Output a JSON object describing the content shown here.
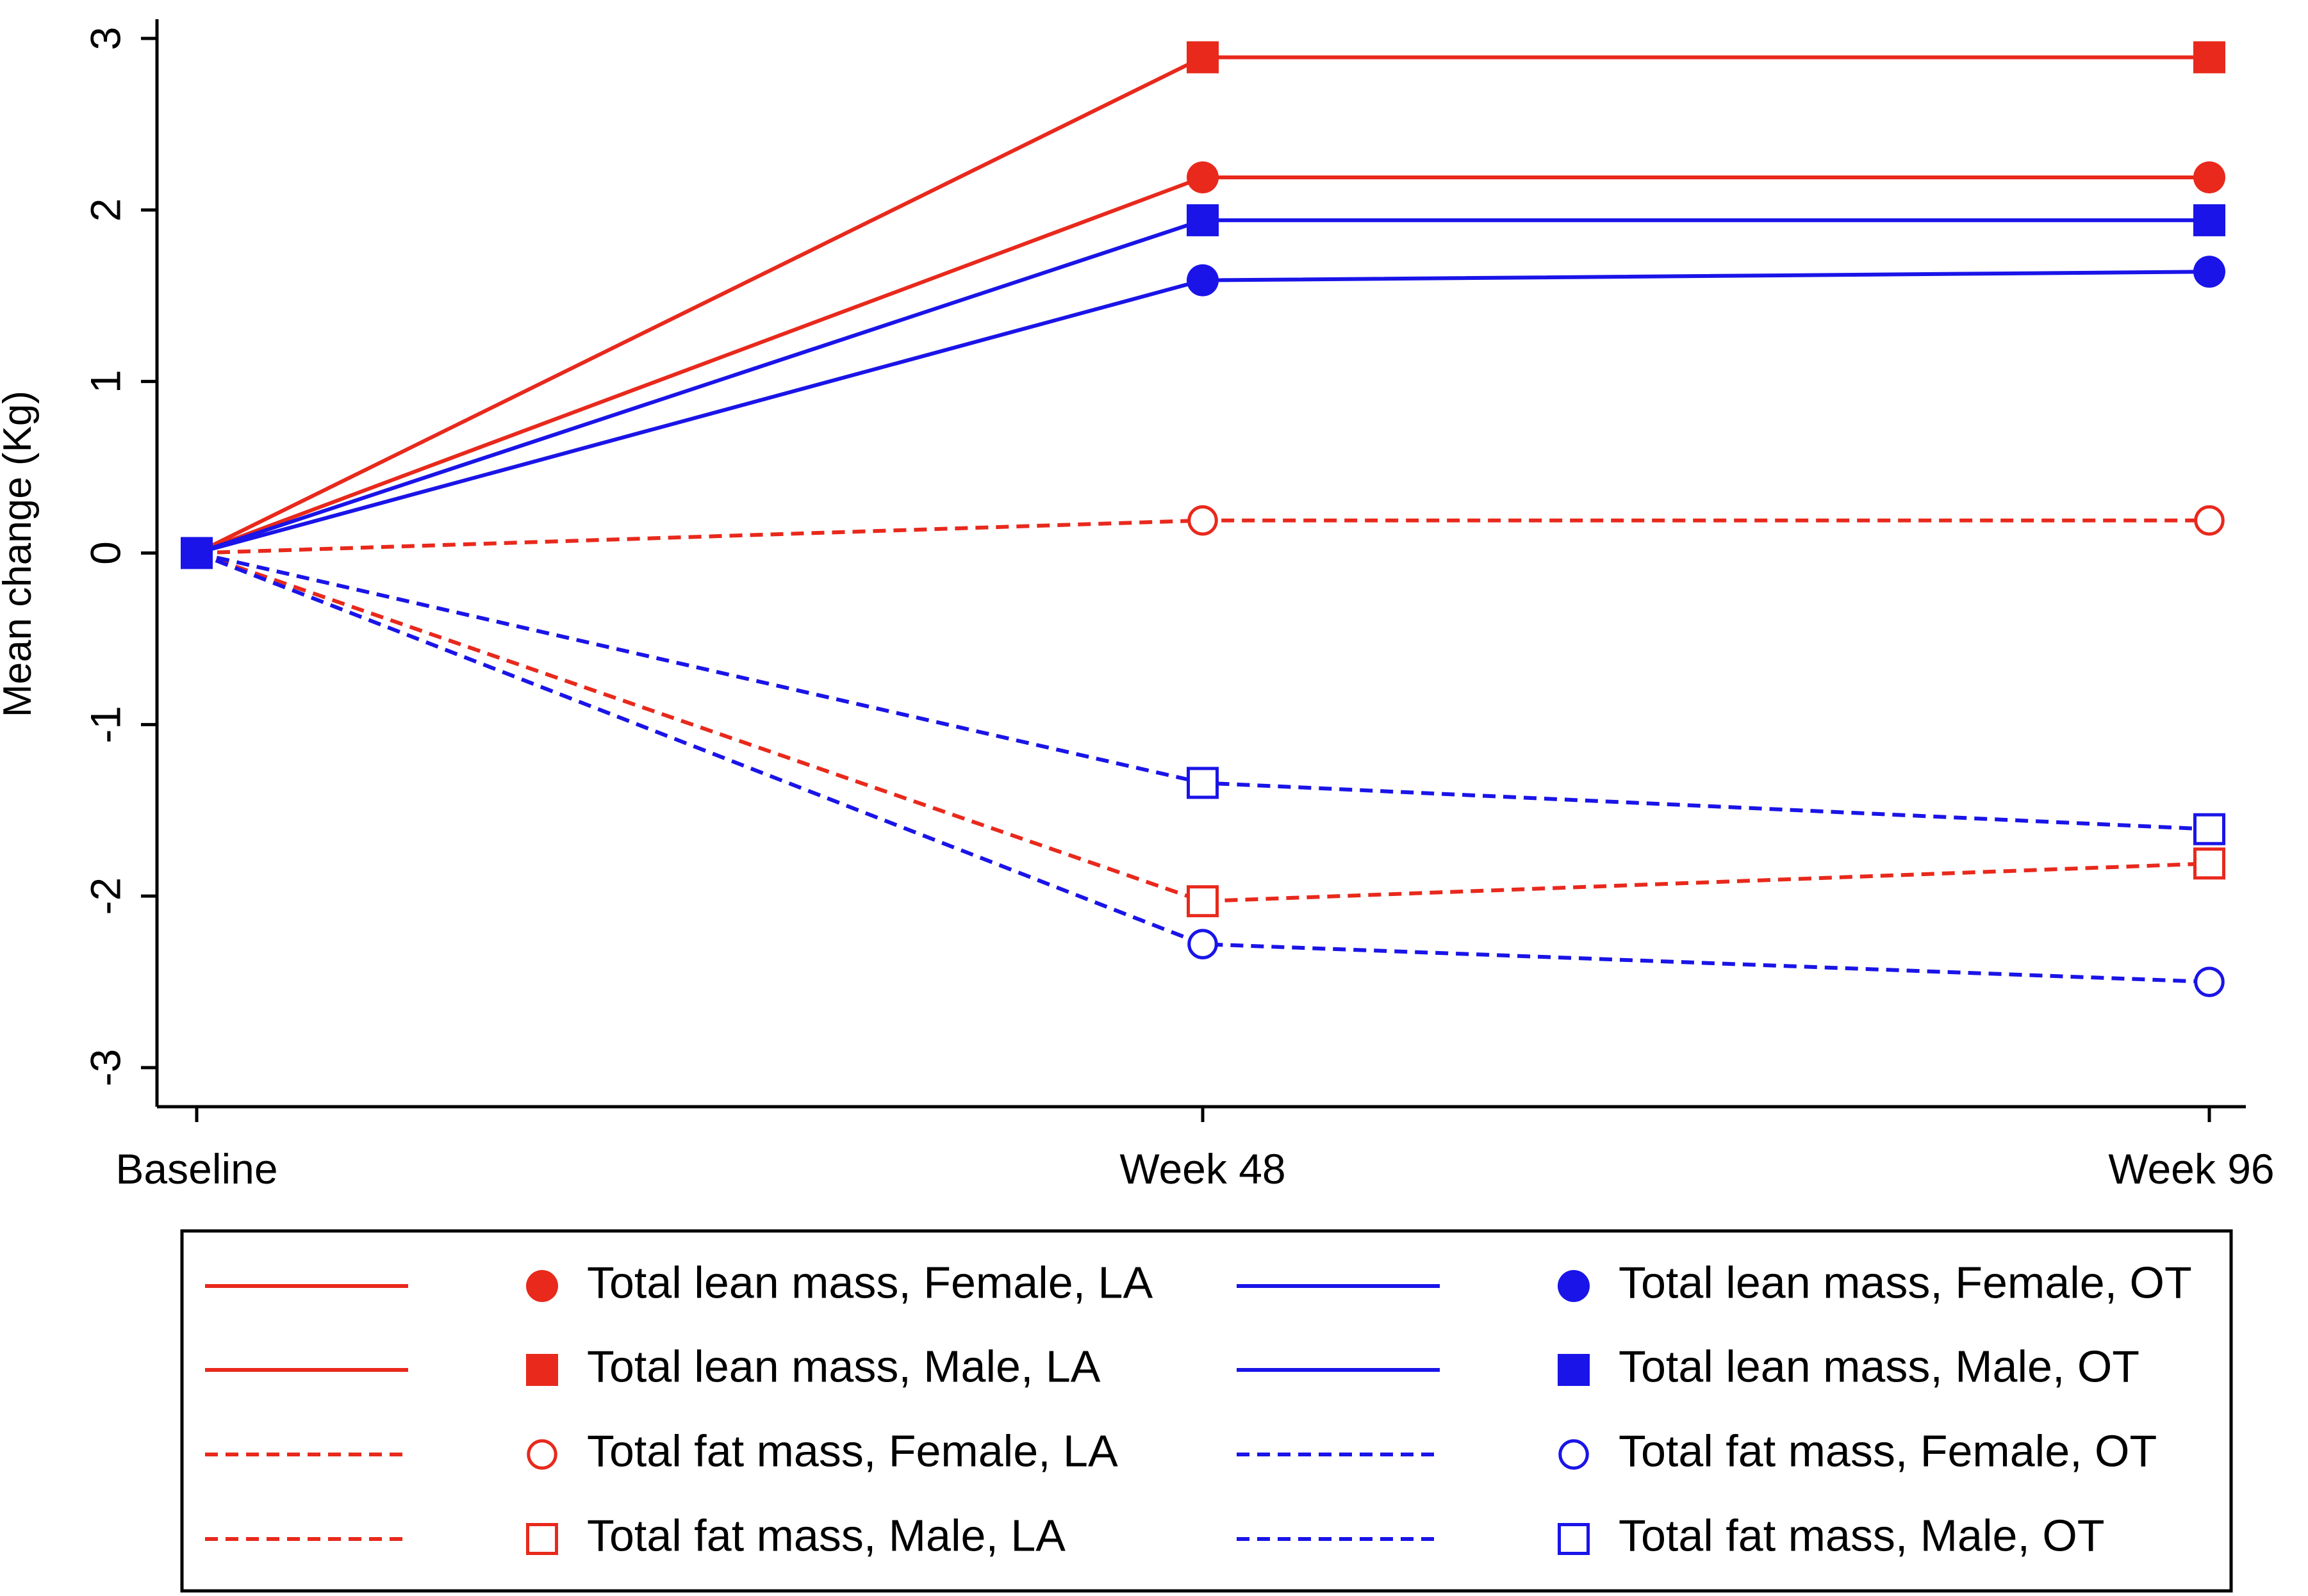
{
  "chart_data": {
    "type": "line",
    "title": "",
    "xlabel": "",
    "ylabel": "Mean change (Kg)",
    "categories": [
      "Baseline",
      "Week 48",
      "Week 96"
    ],
    "yticks": [
      "3",
      "2",
      "1",
      "0",
      "-1",
      "-2",
      "-3"
    ],
    "ylim": [
      -3,
      3
    ],
    "colors": {
      "LA": "#e8291c",
      "OT": "#1a14e8"
    },
    "series": [
      {
        "name": "Total lean mass, Female, LA",
        "group": "LA",
        "marker": "circle-filled",
        "dashed": false,
        "values": [
          0,
          2.19,
          2.19
        ]
      },
      {
        "name": "Total lean mass, Male, LA",
        "group": "LA",
        "marker": "square-filled",
        "dashed": false,
        "values": [
          0,
          2.89,
          2.89
        ]
      },
      {
        "name": "Total fat mass, Female, LA",
        "group": "LA",
        "marker": "circle-open",
        "dashed": true,
        "values": [
          0,
          0.19,
          0.19
        ]
      },
      {
        "name": "Total fat mass, Male, LA",
        "group": "LA",
        "marker": "square-open",
        "dashed": true,
        "values": [
          0,
          -2.03,
          -1.81
        ]
      },
      {
        "name": "Total lean mass, Female, OT",
        "group": "OT",
        "marker": "circle-filled",
        "dashed": false,
        "values": [
          0,
          1.59,
          1.64
        ]
      },
      {
        "name": "Total lean mass, Male, OT",
        "group": "OT",
        "marker": "square-filled",
        "dashed": false,
        "values": [
          0,
          1.94,
          1.94
        ]
      },
      {
        "name": "Total fat mass, Female, OT",
        "group": "OT",
        "marker": "circle-open",
        "dashed": true,
        "values": [
          0,
          -2.28,
          -2.5
        ]
      },
      {
        "name": "Total fat mass, Male, OT",
        "group": "OT",
        "marker": "square-open",
        "dashed": true,
        "values": [
          0,
          -1.34,
          -1.61
        ]
      }
    ]
  }
}
